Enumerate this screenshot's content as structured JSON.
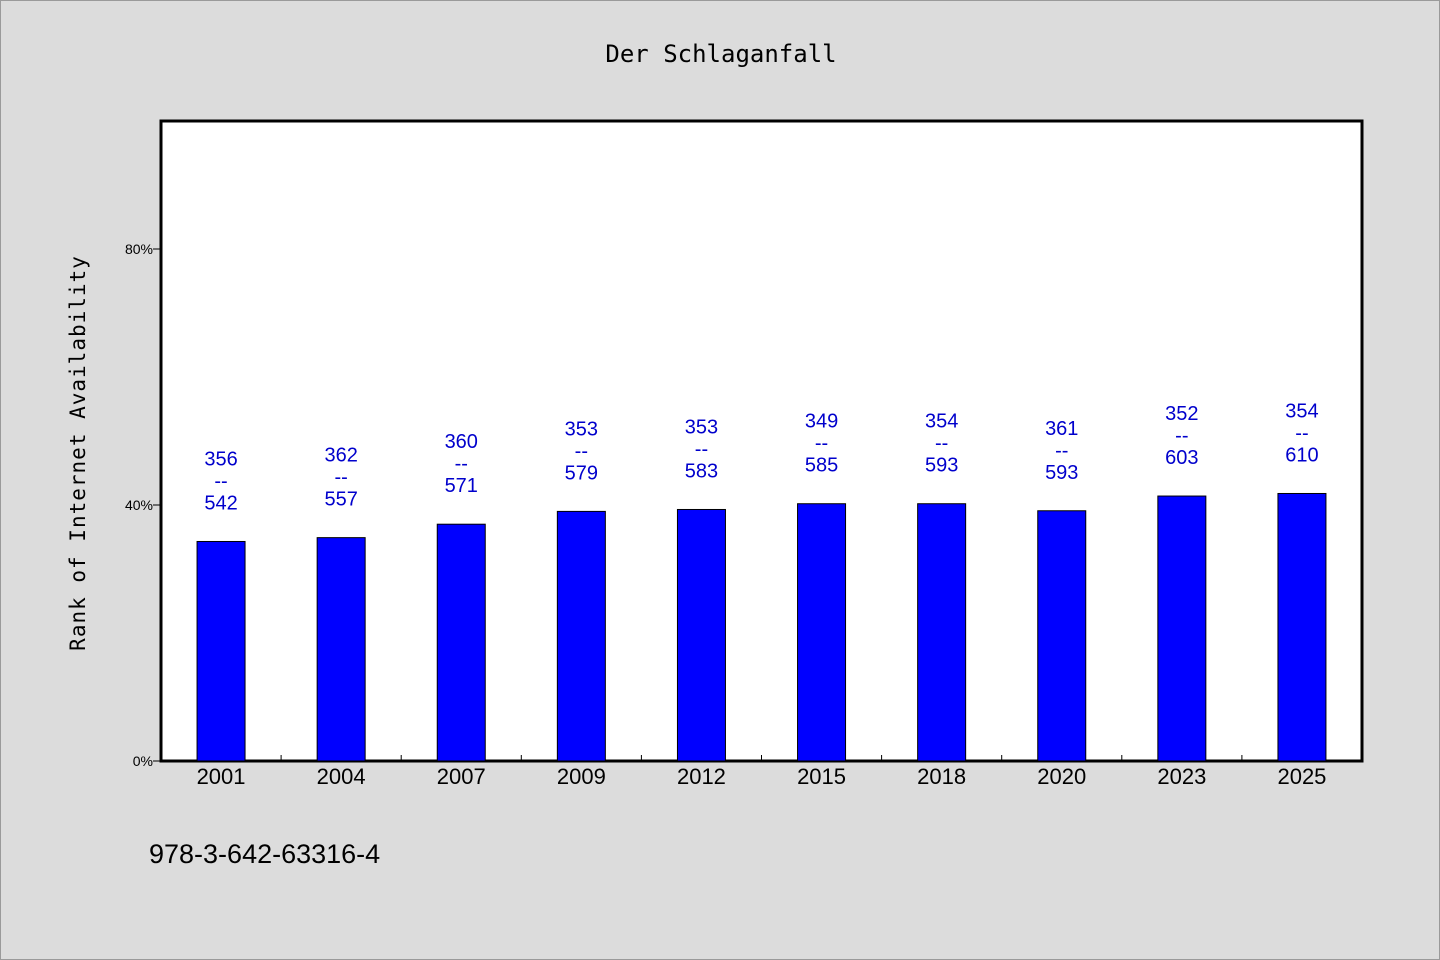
{
  "chart_data": {
    "type": "bar",
    "title": "Der Schlaganfall",
    "xlabel": "",
    "ylabel": "Rank of Internet Availability",
    "ylim": [
      0,
      100
    ],
    "yticks": [
      0,
      40,
      80
    ],
    "ytick_labels": [
      "0%",
      "40%",
      "80%"
    ],
    "grid": false,
    "bar_color": "#0000ff",
    "label_color": "#0000cc",
    "categories": [
      "2001",
      "2004",
      "2007",
      "2009",
      "2012",
      "2015",
      "2018",
      "2020",
      "2023",
      "2025"
    ],
    "values": [
      34.3,
      34.9,
      37.0,
      39.0,
      39.3,
      40.2,
      40.2,
      39.1,
      41.4,
      41.8
    ],
    "data_labels": [
      [
        "356",
        "--",
        "542"
      ],
      [
        "362",
        "--",
        "557"
      ],
      [
        "360",
        "--",
        "571"
      ],
      [
        "353",
        "--",
        "579"
      ],
      [
        "353",
        "--",
        "583"
      ],
      [
        "349",
        "--",
        "585"
      ],
      [
        "354",
        "--",
        "593"
      ],
      [
        "361",
        "--",
        "593"
      ],
      [
        "352",
        "--",
        "603"
      ],
      [
        "354",
        "--",
        "610"
      ]
    ]
  },
  "footer": {
    "isbn": "978-3-642-63316-4"
  }
}
